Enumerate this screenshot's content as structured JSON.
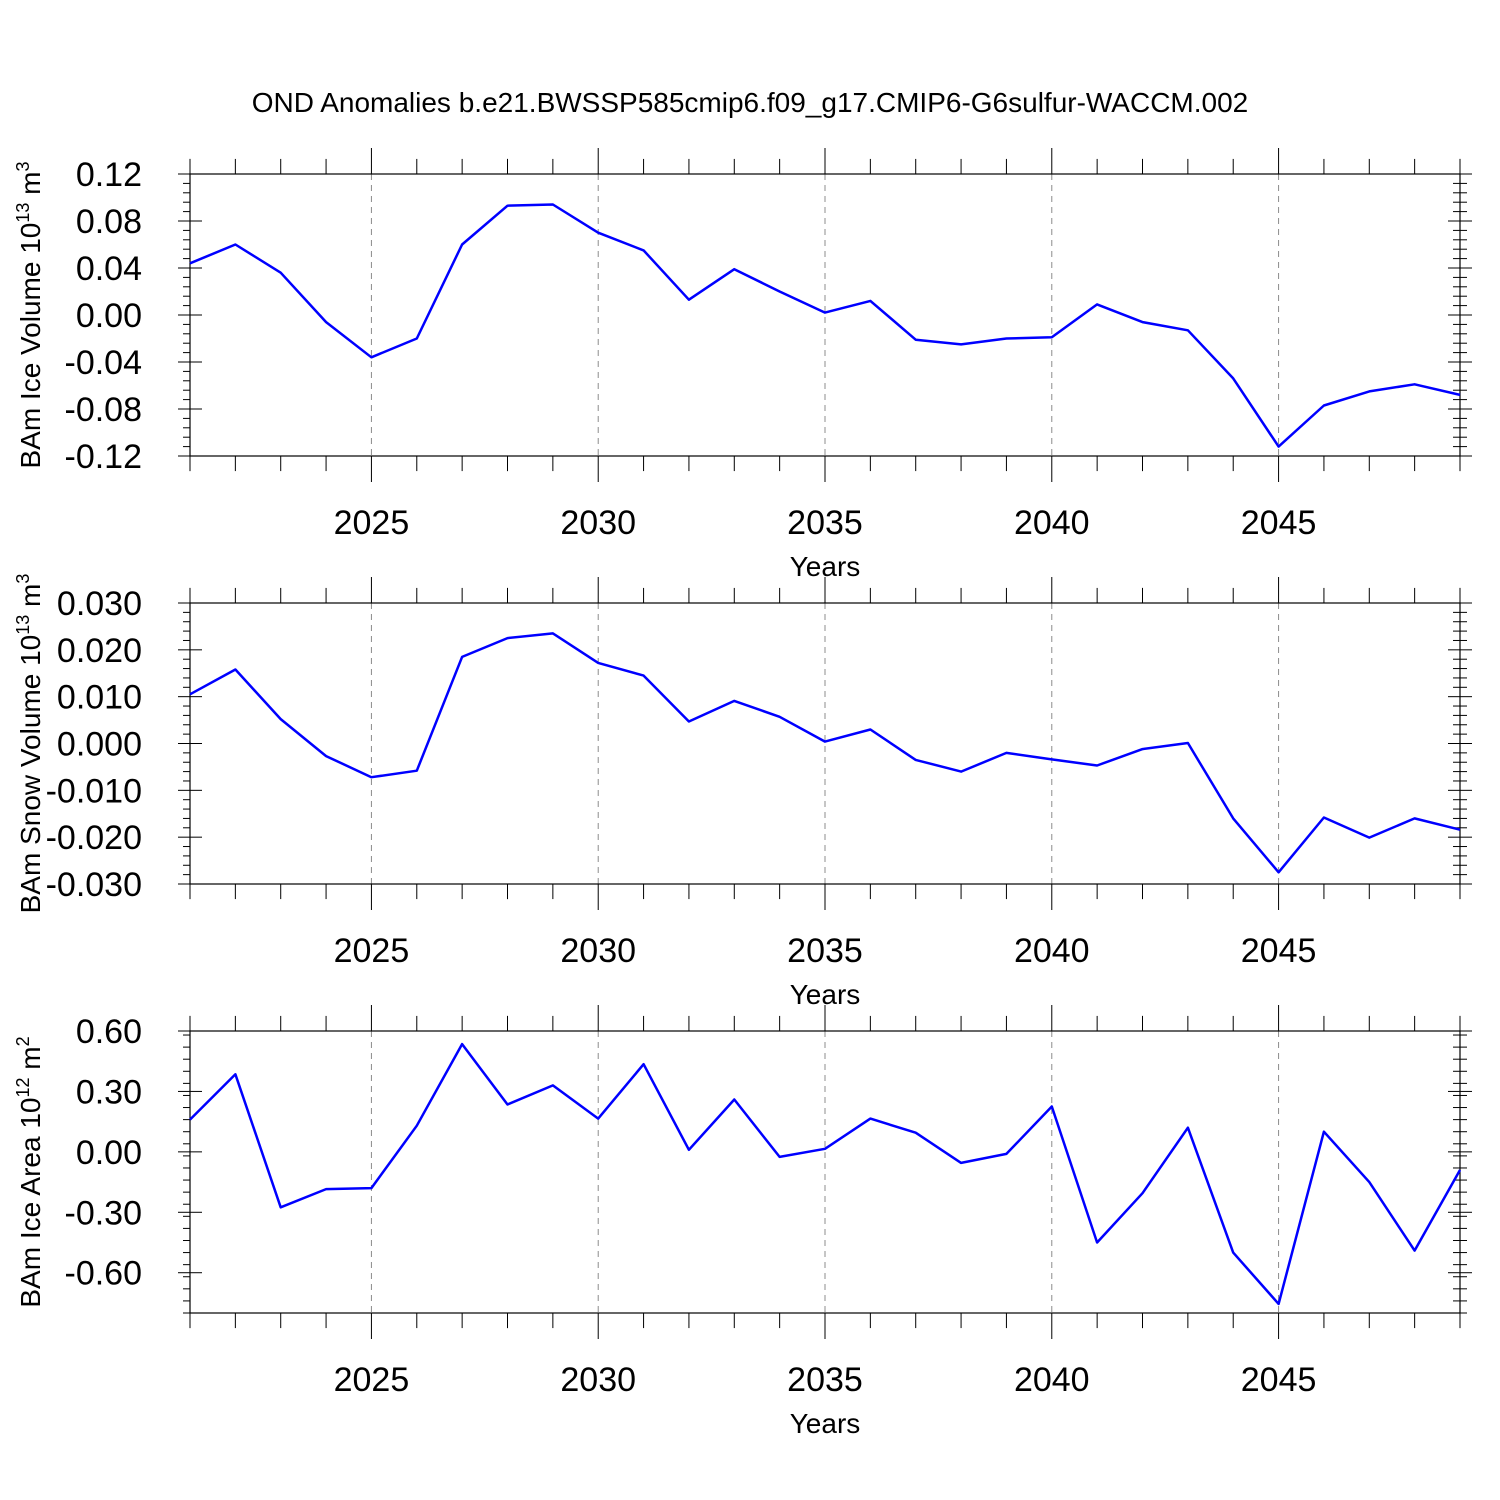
{
  "title": "OND Anomalies b.e21.BWSSP585cmip6.f09_g17.CMIP6-G6sulfur-WACCM.002",
  "chart_data": [
    {
      "type": "line",
      "ylabel": "BAm Ice Volume 10",
      "ylabel_exp": "13",
      "ylabel_unit": " m",
      "ylabel_unit_exp": "3",
      "xlabel": "Years",
      "xlim": [
        2021,
        2049
      ],
      "ylim": [
        -0.12,
        0.12
      ],
      "yticks": [
        -0.12,
        -0.08,
        -0.04,
        0.0,
        0.04,
        0.08,
        0.12
      ],
      "ytick_labels": [
        "-0.12",
        "-0.08",
        "-0.04",
        "0.00",
        "0.04",
        "0.08",
        "0.12"
      ],
      "xticks": [
        2025,
        2030,
        2035,
        2040,
        2045
      ],
      "xtick_labels": [
        "2025",
        "2030",
        "2035",
        "2040",
        "2045"
      ],
      "grid": "dashed vertical at major x ticks",
      "series": [
        {
          "color": "#0000ff",
          "x": [
            2021,
            2022,
            2023,
            2024,
            2025,
            2026,
            2027,
            2028,
            2029,
            2030,
            2031,
            2032,
            2033,
            2034,
            2035,
            2036,
            2037,
            2038,
            2039,
            2040,
            2041,
            2042,
            2043,
            2044,
            2045,
            2046,
            2047,
            2048,
            2049
          ],
          "y": [
            0.044,
            0.06,
            0.036,
            -0.006,
            -0.036,
            -0.02,
            0.06,
            0.093,
            0.094,
            0.07,
            0.055,
            0.013,
            0.039,
            0.02,
            0.002,
            0.012,
            -0.021,
            -0.025,
            -0.02,
            -0.019,
            0.009,
            -0.006,
            -0.013,
            -0.054,
            -0.112,
            -0.077,
            -0.065,
            -0.059,
            -0.068
          ]
        }
      ]
    },
    {
      "type": "line",
      "ylabel": "BAm Snow Volume 10",
      "ylabel_exp": "13",
      "ylabel_unit": " m",
      "ylabel_unit_exp": "3",
      "xlabel": "Years",
      "xlim": [
        2021,
        2049
      ],
      "ylim": [
        -0.03,
        0.03
      ],
      "yticks": [
        -0.03,
        -0.02,
        -0.01,
        0.0,
        0.01,
        0.02,
        0.03
      ],
      "ytick_labels": [
        "-0.030",
        "-0.020",
        "-0.010",
        "0.000",
        "0.010",
        "0.020",
        "0.030"
      ],
      "xticks": [
        2025,
        2030,
        2035,
        2040,
        2045
      ],
      "xtick_labels": [
        "2025",
        "2030",
        "2035",
        "2040",
        "2045"
      ],
      "grid": "dashed vertical at major x ticks",
      "series": [
        {
          "color": "#0000ff",
          "x": [
            2021,
            2022,
            2023,
            2024,
            2025,
            2026,
            2027,
            2028,
            2029,
            2030,
            2031,
            2032,
            2033,
            2034,
            2035,
            2036,
            2037,
            2038,
            2039,
            2040,
            2041,
            2042,
            2043,
            2044,
            2045,
            2046,
            2047,
            2048,
            2049
          ],
          "y": [
            0.0105,
            0.0158,
            0.0052,
            -0.0027,
            -0.0072,
            -0.0058,
            0.0185,
            0.0225,
            0.0235,
            0.0172,
            0.0145,
            0.0047,
            0.0091,
            0.0057,
            0.0004,
            0.003,
            -0.0035,
            -0.006,
            -0.002,
            -0.0034,
            -0.0047,
            -0.0012,
            0.0001,
            -0.016,
            -0.0275,
            -0.0158,
            -0.0201,
            -0.016,
            -0.0184
          ]
        }
      ]
    },
    {
      "type": "line",
      "ylabel": "BAm Ice Area 10",
      "ylabel_exp": "12",
      "ylabel_unit": " m",
      "ylabel_unit_exp": "2",
      "xlabel": "Years",
      "xlim": [
        2021,
        2049
      ],
      "ylim": [
        -0.8,
        0.6
      ],
      "yticks": [
        -0.6,
        -0.3,
        0.0,
        0.3,
        0.6
      ],
      "ytick_labels": [
        "-0.60",
        "-0.30",
        "0.00",
        "0.30",
        "0.60"
      ],
      "xticks": [
        2025,
        2030,
        2035,
        2040,
        2045
      ],
      "xtick_labels": [
        "2025",
        "2030",
        "2035",
        "2040",
        "2045"
      ],
      "grid": "dashed vertical at major x ticks",
      "series": [
        {
          "color": "#0000ff",
          "x": [
            2021,
            2022,
            2023,
            2024,
            2025,
            2026,
            2027,
            2028,
            2029,
            2030,
            2031,
            2032,
            2033,
            2034,
            2035,
            2036,
            2037,
            2038,
            2039,
            2040,
            2041,
            2042,
            2043,
            2044,
            2045,
            2046,
            2047,
            2048,
            2049
          ],
          "y": [
            0.16,
            0.385,
            -0.275,
            -0.185,
            -0.18,
            0.13,
            0.535,
            0.235,
            0.33,
            0.165,
            0.435,
            0.01,
            0.26,
            -0.025,
            0.015,
            0.165,
            0.095,
            -0.055,
            -0.01,
            0.225,
            -0.45,
            -0.205,
            0.12,
            -0.5,
            -0.755,
            0.1,
            -0.15,
            -0.49,
            -0.09
          ]
        }
      ]
    }
  ]
}
